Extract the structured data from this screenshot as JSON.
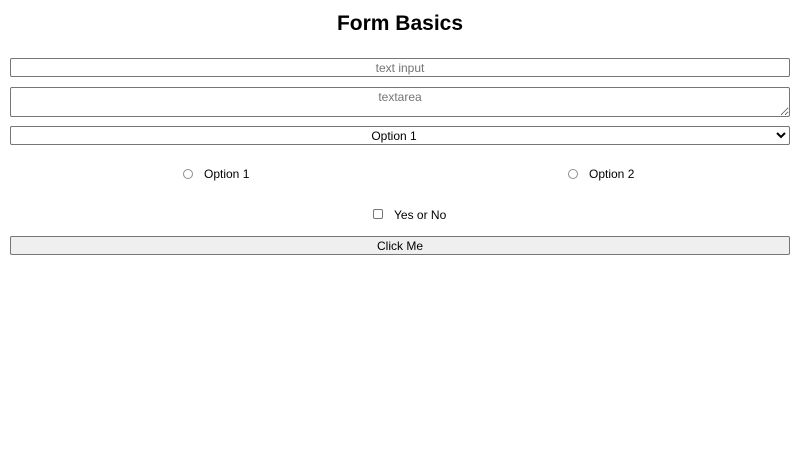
{
  "title": "Form Basics",
  "text_input": {
    "value": "",
    "placeholder": "text input"
  },
  "textarea": {
    "value": "",
    "placeholder": "textarea"
  },
  "select": {
    "selected": "Option 1"
  },
  "radios": [
    {
      "label": "Option 1",
      "checked": false
    },
    {
      "label": "Option 2",
      "checked": false
    }
  ],
  "checkbox": {
    "label": "Yes or No",
    "checked": false
  },
  "button": {
    "label": "Click Me"
  }
}
